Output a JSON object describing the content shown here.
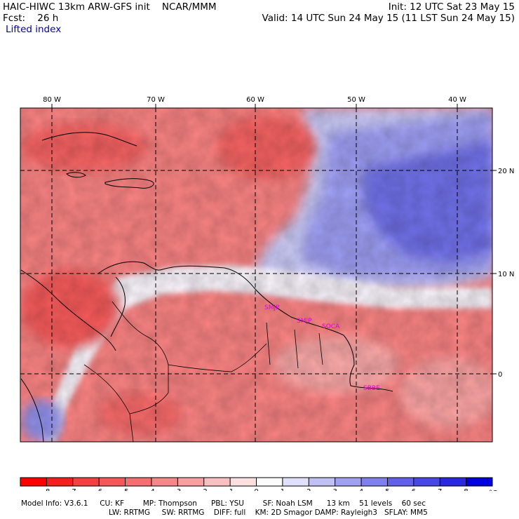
{
  "header": {
    "model": "HAIC-HIWC 13km ARW-GFS init",
    "org": "NCAR/MMM",
    "forecast_label": "Fcst:",
    "forecast_hours": "26 h",
    "field_name": "Lifted index",
    "init_time": "Init: 12 UTC Sat 23 May 15",
    "valid_time": "Valid: 14 UTC Sun 24 May 15 (11 LST Sun 24 May 15)"
  },
  "map": {
    "lon_labels": [
      "80 W",
      "70 W",
      "60 W",
      "50 W",
      "40 W"
    ],
    "lat_labels": [
      "20 N",
      "10 N",
      "0"
    ],
    "station_labels": [
      "SMJP",
      "SMJP",
      "SOCA",
      "SBBE"
    ],
    "field_colors": {
      "strong_negative": "#f04a4a",
      "negative": "#f48080",
      "weak_negative": "#f8b0b0",
      "neutral": "#f4f0f8",
      "weak_positive": "#c8c8f4",
      "positive": "#8a8aea",
      "strong_positive": "#5c5ce0"
    }
  },
  "colorbar": {
    "ticks": [
      "-8",
      "-7",
      "-6",
      "-5",
      "-4",
      "-3",
      "-2",
      "-1",
      "0",
      "1",
      "2",
      "3",
      "4",
      "5",
      "6",
      "7",
      "8"
    ],
    "unit": "°C",
    "colors": [
      "#ff0000",
      "#f42020",
      "#f44040",
      "#f45858",
      "#f47070",
      "#f48888",
      "#f8a0a0",
      "#f8c0c0",
      "#fce0e0",
      "#fcfcfc",
      "#e0e0fc",
      "#c0c0f4",
      "#a0a0f0",
      "#8080ec",
      "#6060e8",
      "#4848e4",
      "#2828e0",
      "#0000dc"
    ]
  },
  "model_info": {
    "line1": "Model Info: V3.6.1     CU: KF        MP: Thompson      PBL: YSU        SF: Noah LSM      13 km    51 levels    60 sec",
    "line2": "LW: RRTMG     SW: RRTMG    DIFF: full    KM: 2D Smagor DAMP: Rayleigh3   SFLAY: MM5"
  }
}
